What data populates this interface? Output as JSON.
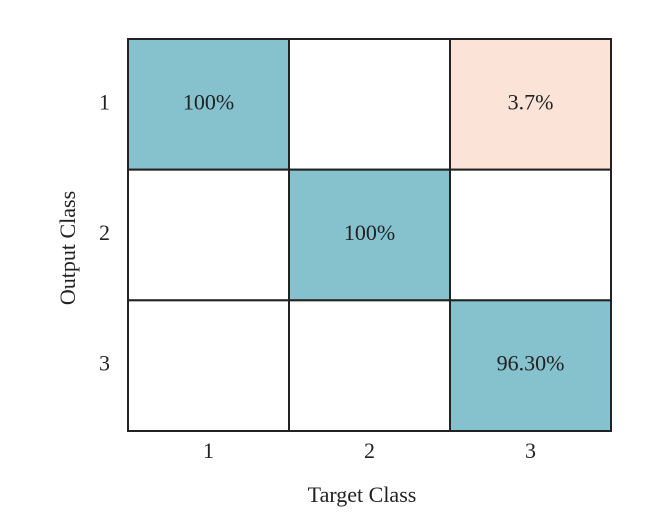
{
  "chart_data": {
    "type": "heatmap",
    "x_label": "Target Class",
    "y_label": "Output Class",
    "x_categories": [
      "1",
      "2",
      "3"
    ],
    "y_categories": [
      "1",
      "2",
      "3"
    ],
    "values": [
      [
        100,
        null,
        3.7
      ],
      [
        null,
        100,
        null
      ],
      [
        null,
        null,
        96.3
      ]
    ],
    "value_labels": [
      [
        "100%",
        null,
        "3.7%"
      ],
      [
        null,
        "100%",
        null
      ],
      [
        null,
        null,
        "96.30%"
      ]
    ],
    "diagonal_color": "#86c1ce",
    "off_diagonal_color": "#fbe3d8"
  }
}
